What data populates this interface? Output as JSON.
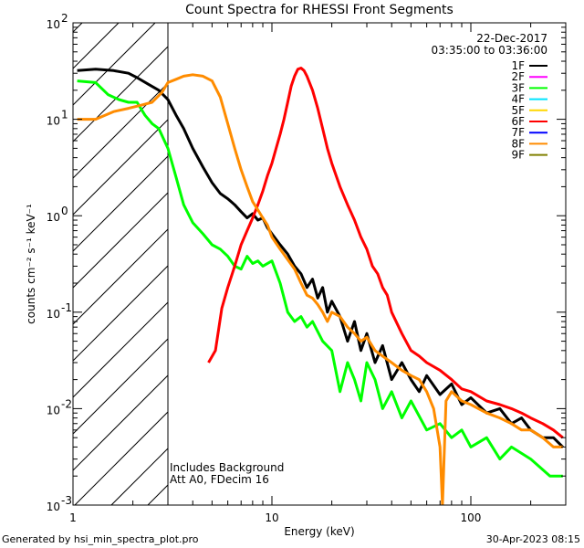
{
  "chart_data": {
    "type": "line",
    "title": "Count Spectra for RHESSI Front Segments",
    "xlabel": "Energy (keV)",
    "ylabel": "counts cm⁻² s⁻¹ keV⁻¹",
    "xscale": "log",
    "yscale": "log",
    "xlim": [
      1.0,
      300.0
    ],
    "ylim": [
      0.001,
      100.0
    ],
    "x_ticks": [
      {
        "value": 1,
        "label": "1"
      },
      {
        "value": 10,
        "label": "10"
      },
      {
        "value": 100,
        "label": "100"
      }
    ],
    "y_ticks": [
      {
        "exp": -3,
        "label_base": "10",
        "label_exp": "-3"
      },
      {
        "exp": -2,
        "label_base": "10",
        "label_exp": "-2"
      },
      {
        "exp": -1,
        "label_base": "10",
        "label_exp": "-1"
      },
      {
        "exp": 0,
        "label_base": "10",
        "label_exp": "0"
      },
      {
        "exp": 1,
        "label_base": "10",
        "label_exp": "1"
      },
      {
        "exp": 2,
        "label_base": "10",
        "label_exp": "2"
      }
    ],
    "date": "22-Dec-2017",
    "time_range": "03:35:00 to 03:36:00",
    "hatched_region_below_keV": 3.0,
    "annotations": [
      "Includes Background",
      "Att A0, FDecim 16"
    ],
    "legend_position": "top-right",
    "legend": [
      {
        "label": "1F",
        "color": "#000000"
      },
      {
        "label": "2F",
        "color": "#ff00ff"
      },
      {
        "label": "3F",
        "color": "#00ff00"
      },
      {
        "label": "4F",
        "color": "#00e5ff"
      },
      {
        "label": "5F",
        "color": "#ffd700"
      },
      {
        "label": "6F",
        "color": "#ff0000"
      },
      {
        "label": "7F",
        "color": "#0000ff"
      },
      {
        "label": "8F",
        "color": "#ff8c00"
      },
      {
        "label": "9F",
        "color": "#808000"
      }
    ],
    "series": [
      {
        "name": "1F",
        "color": "#000000",
        "width": 3,
        "points": [
          [
            1.05,
            32
          ],
          [
            1.3,
            33
          ],
          [
            1.6,
            32
          ],
          [
            1.9,
            30
          ],
          [
            2.1,
            27
          ],
          [
            2.4,
            23
          ],
          [
            2.7,
            20
          ],
          [
            3.0,
            16
          ],
          [
            3.3,
            11
          ],
          [
            3.6,
            8
          ],
          [
            4.0,
            5
          ],
          [
            4.5,
            3.2
          ],
          [
            5.0,
            2.2
          ],
          [
            5.5,
            1.7
          ],
          [
            6.0,
            1.5
          ],
          [
            6.5,
            1.3
          ],
          [
            7.0,
            1.1
          ],
          [
            7.5,
            0.95
          ],
          [
            8.0,
            1.05
          ],
          [
            8.5,
            0.9
          ],
          [
            9.0,
            0.95
          ],
          [
            9.5,
            0.75
          ],
          [
            10,
            0.65
          ],
          [
            11,
            0.5
          ],
          [
            12,
            0.4
          ],
          [
            13,
            0.3
          ],
          [
            14,
            0.25
          ],
          [
            15,
            0.18
          ],
          [
            16,
            0.22
          ],
          [
            17,
            0.14
          ],
          [
            18,
            0.18
          ],
          [
            19,
            0.1
          ],
          [
            20,
            0.13
          ],
          [
            22,
            0.09
          ],
          [
            24,
            0.05
          ],
          [
            26,
            0.08
          ],
          [
            28,
            0.04
          ],
          [
            30,
            0.06
          ],
          [
            33,
            0.03
          ],
          [
            36,
            0.045
          ],
          [
            40,
            0.02
          ],
          [
            45,
            0.03
          ],
          [
            50,
            0.02
          ],
          [
            55,
            0.015
          ],
          [
            60,
            0.022
          ],
          [
            70,
            0.014
          ],
          [
            80,
            0.018
          ],
          [
            90,
            0.011
          ],
          [
            100,
            0.013
          ],
          [
            120,
            0.009
          ],
          [
            140,
            0.01
          ],
          [
            160,
            0.007
          ],
          [
            180,
            0.008
          ],
          [
            200,
            0.006
          ],
          [
            230,
            0.005
          ],
          [
            260,
            0.005
          ],
          [
            290,
            0.004
          ]
        ]
      },
      {
        "name": "3F",
        "color": "#00ff00",
        "width": 3,
        "points": [
          [
            1.05,
            25
          ],
          [
            1.3,
            24
          ],
          [
            1.5,
            18
          ],
          [
            1.7,
            16
          ],
          [
            1.9,
            15
          ],
          [
            2.1,
            15
          ],
          [
            2.3,
            11
          ],
          [
            2.5,
            9
          ],
          [
            2.7,
            8
          ],
          [
            3.0,
            5
          ],
          [
            3.3,
            2.5
          ],
          [
            3.6,
            1.3
          ],
          [
            4.0,
            0.85
          ],
          [
            4.5,
            0.65
          ],
          [
            5.0,
            0.5
          ],
          [
            5.5,
            0.45
          ],
          [
            6.0,
            0.38
          ],
          [
            6.5,
            0.3
          ],
          [
            7.0,
            0.28
          ],
          [
            7.5,
            0.38
          ],
          [
            8.0,
            0.32
          ],
          [
            8.5,
            0.34
          ],
          [
            9.0,
            0.3
          ],
          [
            10,
            0.34
          ],
          [
            11,
            0.2
          ],
          [
            12,
            0.1
          ],
          [
            13,
            0.08
          ],
          [
            14,
            0.09
          ],
          [
            15,
            0.07
          ],
          [
            16,
            0.08
          ],
          [
            18,
            0.05
          ],
          [
            20,
            0.04
          ],
          [
            22,
            0.015
          ],
          [
            24,
            0.03
          ],
          [
            26,
            0.02
          ],
          [
            28,
            0.012
          ],
          [
            30,
            0.03
          ],
          [
            33,
            0.02
          ],
          [
            36,
            0.01
          ],
          [
            40,
            0.015
          ],
          [
            45,
            0.008
          ],
          [
            50,
            0.012
          ],
          [
            60,
            0.006
          ],
          [
            70,
            0.007
          ],
          [
            80,
            0.005
          ],
          [
            90,
            0.006
          ],
          [
            100,
            0.004
          ],
          [
            120,
            0.005
          ],
          [
            140,
            0.003
          ],
          [
            160,
            0.004
          ],
          [
            200,
            0.003
          ],
          [
            250,
            0.002
          ],
          [
            290,
            0.002
          ]
        ]
      },
      {
        "name": "6F",
        "color": "#ff0000",
        "width": 3,
        "points": [
          [
            4.8,
            0.03
          ],
          [
            5.2,
            0.04
          ],
          [
            5.6,
            0.11
          ],
          [
            6.0,
            0.18
          ],
          [
            6.5,
            0.3
          ],
          [
            7.0,
            0.5
          ],
          [
            7.5,
            0.7
          ],
          [
            8.0,
            0.95
          ],
          [
            8.5,
            1.3
          ],
          [
            9.0,
            1.8
          ],
          [
            9.5,
            2.6
          ],
          [
            10,
            3.5
          ],
          [
            10.5,
            5
          ],
          [
            11,
            7
          ],
          [
            11.5,
            10
          ],
          [
            12,
            15
          ],
          [
            12.5,
            22
          ],
          [
            13,
            28
          ],
          [
            13.5,
            33
          ],
          [
            14,
            34
          ],
          [
            14.5,
            32
          ],
          [
            15,
            28
          ],
          [
            16,
            20
          ],
          [
            17,
            13
          ],
          [
            18,
            8
          ],
          [
            19,
            5
          ],
          [
            20,
            3.5
          ],
          [
            22,
            2
          ],
          [
            24,
            1.3
          ],
          [
            26,
            0.9
          ],
          [
            28,
            0.6
          ],
          [
            30,
            0.45
          ],
          [
            32,
            0.3
          ],
          [
            34,
            0.25
          ],
          [
            36,
            0.18
          ],
          [
            38,
            0.15
          ],
          [
            40,
            0.1
          ],
          [
            45,
            0.06
          ],
          [
            50,
            0.04
          ],
          [
            55,
            0.035
          ],
          [
            60,
            0.03
          ],
          [
            70,
            0.025
          ],
          [
            80,
            0.02
          ],
          [
            90,
            0.016
          ],
          [
            100,
            0.015
          ],
          [
            120,
            0.012
          ],
          [
            140,
            0.011
          ],
          [
            160,
            0.01
          ],
          [
            180,
            0.009
          ],
          [
            200,
            0.008
          ],
          [
            230,
            0.007
          ],
          [
            260,
            0.006
          ],
          [
            290,
            0.005
          ]
        ]
      },
      {
        "name": "8F",
        "color": "#ff8c00",
        "width": 3,
        "points": [
          [
            1.05,
            10
          ],
          [
            1.3,
            10
          ],
          [
            1.6,
            12
          ],
          [
            1.9,
            13
          ],
          [
            2.2,
            14
          ],
          [
            2.5,
            15
          ],
          [
            2.8,
            19
          ],
          [
            3.0,
            24
          ],
          [
            3.3,
            26
          ],
          [
            3.6,
            28
          ],
          [
            4.0,
            29
          ],
          [
            4.5,
            28
          ],
          [
            5.0,
            25
          ],
          [
            5.5,
            17
          ],
          [
            6.0,
            9
          ],
          [
            6.5,
            5
          ],
          [
            7.0,
            3
          ],
          [
            7.5,
            2
          ],
          [
            8.0,
            1.4
          ],
          [
            8.5,
            1.15
          ],
          [
            9.0,
            0.95
          ],
          [
            9.5,
            0.8
          ],
          [
            10,
            0.6
          ],
          [
            11,
            0.45
          ],
          [
            12,
            0.35
          ],
          [
            13,
            0.28
          ],
          [
            14,
            0.2
          ],
          [
            15,
            0.15
          ],
          [
            16,
            0.14
          ],
          [
            17,
            0.12
          ],
          [
            18,
            0.1
          ],
          [
            19,
            0.08
          ],
          [
            20,
            0.1
          ],
          [
            22,
            0.09
          ],
          [
            24,
            0.07
          ],
          [
            26,
            0.06
          ],
          [
            28,
            0.05
          ],
          [
            30,
            0.055
          ],
          [
            33,
            0.04
          ],
          [
            36,
            0.035
          ],
          [
            40,
            0.03
          ],
          [
            45,
            0.025
          ],
          [
            50,
            0.022
          ],
          [
            55,
            0.02
          ],
          [
            60,
            0.015
          ],
          [
            65,
            0.01
          ],
          [
            70,
            0.004
          ],
          [
            72,
            0.001
          ],
          [
            75,
            0.012
          ],
          [
            80,
            0.015
          ],
          [
            90,
            0.012
          ],
          [
            100,
            0.011
          ],
          [
            120,
            0.009
          ],
          [
            140,
            0.008
          ],
          [
            160,
            0.007
          ],
          [
            180,
            0.006
          ],
          [
            200,
            0.006
          ],
          [
            230,
            0.005
          ],
          [
            260,
            0.004
          ],
          [
            290,
            0.004
          ]
        ]
      }
    ]
  },
  "footer": {
    "generated_by": "Generated by hsi_min_spectra_plot.pro",
    "timestamp": "30-Apr-2023 08:15"
  }
}
